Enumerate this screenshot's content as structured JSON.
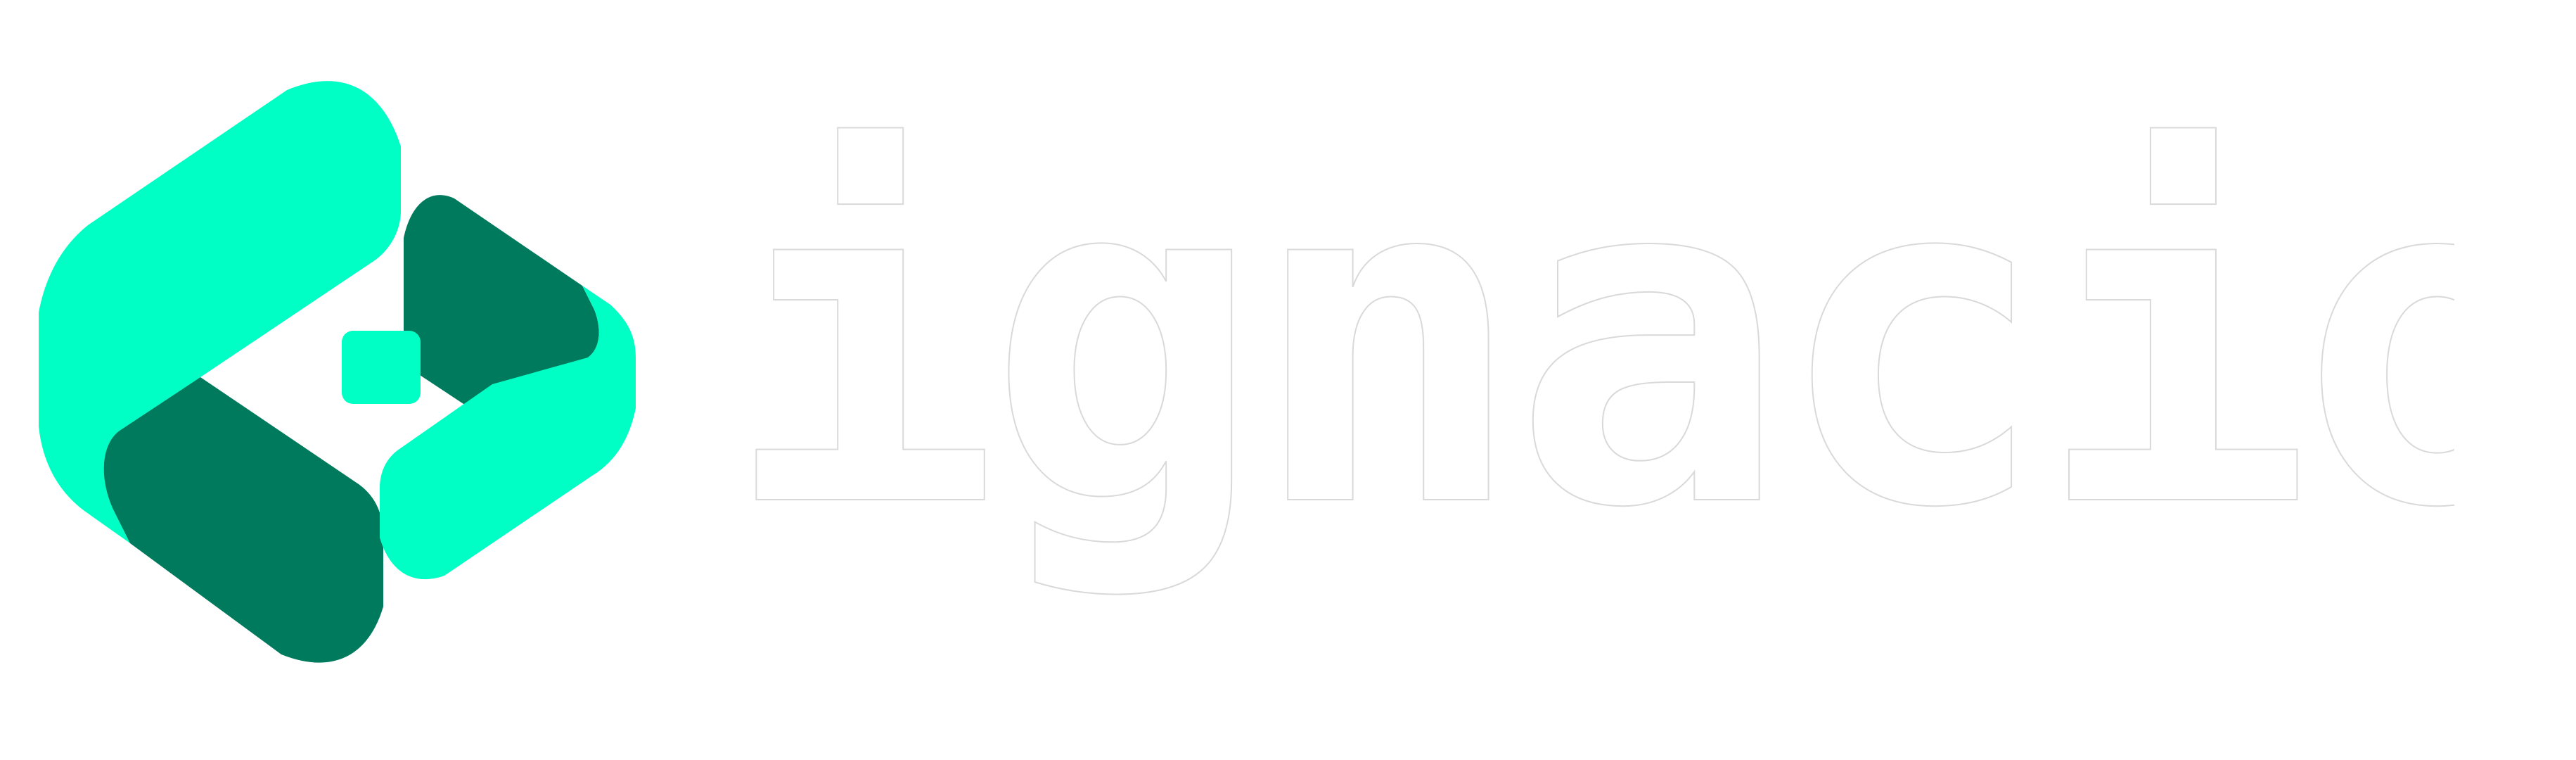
{
  "brand": {
    "name": "ignacio",
    "colors": {
      "accent_light": "#00FFC5",
      "accent_dark": "#007A5C",
      "wordmark_fill": "#FFFFFF",
      "wordmark_stroke": "#D9D9D9"
    },
    "mark_icon": "ignacio-logo-mark-icon"
  }
}
